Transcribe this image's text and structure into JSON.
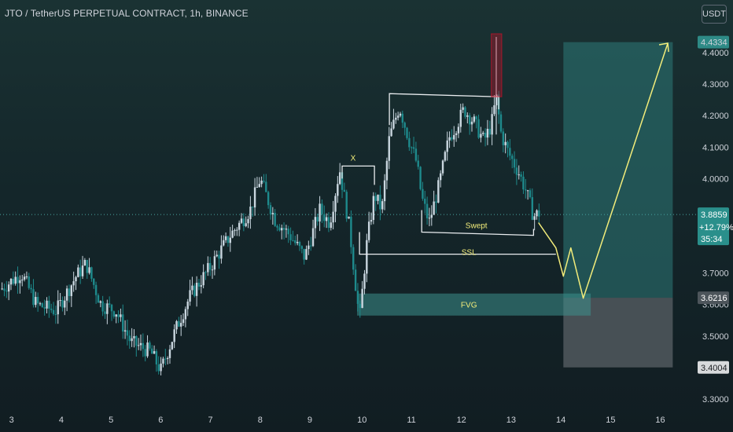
{
  "header": {
    "title": "JTO / TetherUS PERPETUAL CONTRACT, 1h, BINANCE",
    "currency_button": "USDT"
  },
  "colors": {
    "up": "#c9d6df",
    "down": "#1e8a8c",
    "annotation": "#f2ec7a",
    "zone_target": "#2e7a78",
    "zone_stop": "#555c62",
    "wick_highlight": "#d0102a"
  },
  "chart_data": {
    "type": "candlestick",
    "x_ticks": [
      "3",
      "4",
      "5",
      "6",
      "7",
      "8",
      "9",
      "10",
      "11",
      "12",
      "13",
      "14",
      "15",
      "16"
    ],
    "y_ticks": [
      "4.3000",
      "4.2000",
      "4.1000",
      "4.0000",
      "3.7000",
      "3.5000",
      "3.3000"
    ],
    "y_ticks_partial": [
      "4.4000",
      "3.8000",
      "3.6000"
    ],
    "ylim": [
      3.3,
      4.46
    ],
    "xlim": [
      2.8,
      16.8
    ],
    "last_price": "3.8859",
    "change": "+12.79%",
    "countdown": "35:34",
    "take_profit": "4.4334",
    "entry": "3.6216",
    "stop_loss": "3.4004",
    "annotations": [
      "X",
      "Swept",
      "SSL",
      "FVG"
    ],
    "path_anchors": [
      [
        2.8,
        3.65
      ],
      [
        3.2,
        3.7
      ],
      [
        3.5,
        3.6
      ],
      [
        3.9,
        3.58
      ],
      [
        4.3,
        3.69
      ],
      [
        4.5,
        3.73
      ],
      [
        4.8,
        3.6
      ],
      [
        5.1,
        3.58
      ],
      [
        5.4,
        3.48
      ],
      [
        5.8,
        3.45
      ],
      [
        6.0,
        3.39
      ],
      [
        6.3,
        3.52
      ],
      [
        6.6,
        3.63
      ],
      [
        7.0,
        3.72
      ],
      [
        7.4,
        3.82
      ],
      [
        7.8,
        3.9
      ],
      [
        8.0,
        4.0
      ],
      [
        8.3,
        3.87
      ],
      [
        8.6,
        3.82
      ],
      [
        8.9,
        3.75
      ],
      [
        9.2,
        3.9
      ],
      [
        9.4,
        3.86
      ],
      [
        9.6,
        4.03
      ],
      [
        9.8,
        3.84
      ],
      [
        9.95,
        3.62
      ],
      [
        10.0,
        3.55
      ],
      [
        10.15,
        3.8
      ],
      [
        10.3,
        3.95
      ],
      [
        10.45,
        3.9
      ],
      [
        10.6,
        4.13
      ],
      [
        10.8,
        4.23
      ],
      [
        11.0,
        4.12
      ],
      [
        11.15,
        4.05
      ],
      [
        11.25,
        3.94
      ],
      [
        11.4,
        3.86
      ],
      [
        11.6,
        3.98
      ],
      [
        11.8,
        4.13
      ],
      [
        11.95,
        4.17
      ],
      [
        12.1,
        4.22
      ],
      [
        12.3,
        4.18
      ],
      [
        12.5,
        4.12
      ],
      [
        12.65,
        4.17
      ],
      [
        12.75,
        4.26
      ],
      [
        12.85,
        4.14
      ],
      [
        13.0,
        4.08
      ],
      [
        13.2,
        4.02
      ],
      [
        13.35,
        3.96
      ],
      [
        13.5,
        3.88
      ],
      [
        13.6,
        3.89
      ]
    ],
    "projection": [
      [
        13.6,
        3.86
      ],
      [
        13.95,
        3.78
      ],
      [
        14.1,
        3.69
      ],
      [
        14.25,
        3.78
      ],
      [
        14.5,
        3.62
      ],
      [
        16.2,
        4.43
      ]
    ]
  }
}
